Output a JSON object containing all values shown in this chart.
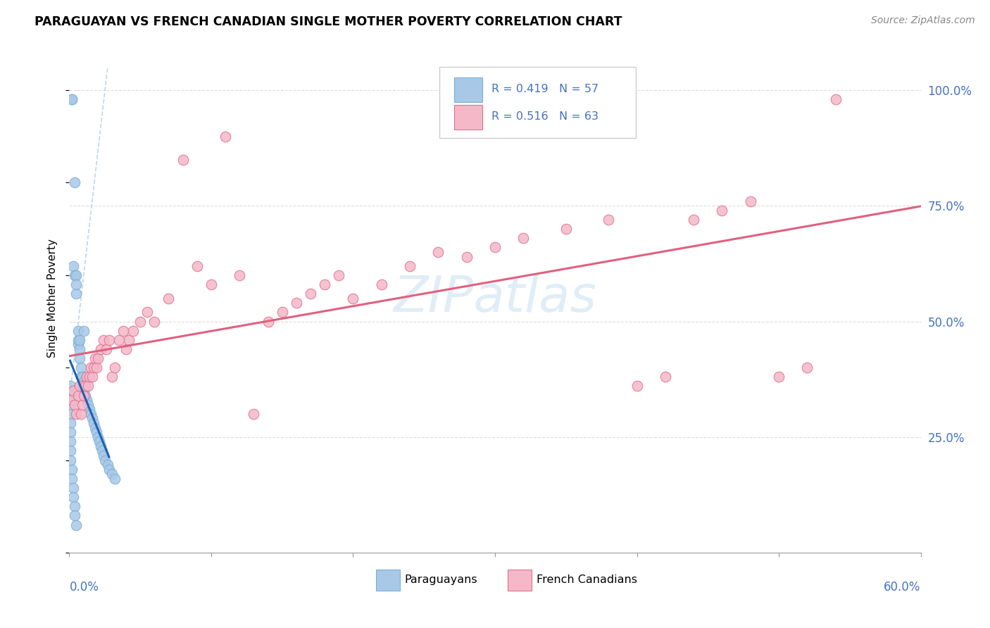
{
  "title": "PARAGUAYAN VS FRENCH CANADIAN SINGLE MOTHER POVERTY CORRELATION CHART",
  "source": "Source: ZipAtlas.com",
  "ylabel": "Single Mother Poverty",
  "paraguayan_color": "#a8c8e8",
  "paraguayan_edge": "#7bafd4",
  "french_color": "#f4b8c8",
  "french_edge": "#e07090",
  "trend_paraguayan_color": "#2060b0",
  "trend_french_color": "#e06080",
  "dashed_color": "#b0cce0",
  "grid_color": "#dddddd",
  "right_tick_color": "#4472c4",
  "watermark_color": "#c8dff0",
  "par_R": "0.419",
  "par_N": "57",
  "fr_R": "0.516",
  "fr_N": "63",
  "par_x": [
    0.002,
    0.002,
    0.003,
    0.004,
    0.004,
    0.005,
    0.005,
    0.005,
    0.006,
    0.006,
    0.006,
    0.007,
    0.007,
    0.007,
    0.008,
    0.008,
    0.009,
    0.009,
    0.01,
    0.01,
    0.011,
    0.011,
    0.012,
    0.013,
    0.014,
    0.015,
    0.016,
    0.017,
    0.018,
    0.019,
    0.02,
    0.021,
    0.022,
    0.023,
    0.024,
    0.025,
    0.027,
    0.028,
    0.03,
    0.032,
    0.001,
    0.001,
    0.001,
    0.001,
    0.001,
    0.001,
    0.001,
    0.001,
    0.001,
    0.002,
    0.002,
    0.003,
    0.003,
    0.004,
    0.004,
    0.005,
    0.01
  ],
  "par_y": [
    0.98,
    0.98,
    0.62,
    0.6,
    0.8,
    0.56,
    0.6,
    0.58,
    0.45,
    0.46,
    0.48,
    0.42,
    0.44,
    0.46,
    0.38,
    0.4,
    0.36,
    0.38,
    0.35,
    0.37,
    0.34,
    0.36,
    0.33,
    0.32,
    0.31,
    0.3,
    0.29,
    0.28,
    0.27,
    0.26,
    0.25,
    0.24,
    0.23,
    0.22,
    0.21,
    0.2,
    0.19,
    0.18,
    0.17,
    0.16,
    0.36,
    0.34,
    0.32,
    0.3,
    0.28,
    0.26,
    0.24,
    0.22,
    0.2,
    0.18,
    0.16,
    0.14,
    0.12,
    0.1,
    0.08,
    0.06,
    0.48
  ],
  "fr_x": [
    0.002,
    0.003,
    0.004,
    0.005,
    0.006,
    0.007,
    0.008,
    0.009,
    0.01,
    0.011,
    0.012,
    0.013,
    0.014,
    0.015,
    0.016,
    0.017,
    0.018,
    0.019,
    0.02,
    0.022,
    0.024,
    0.026,
    0.028,
    0.03,
    0.032,
    0.035,
    0.038,
    0.04,
    0.042,
    0.045,
    0.05,
    0.055,
    0.06,
    0.07,
    0.08,
    0.09,
    0.1,
    0.11,
    0.12,
    0.13,
    0.14,
    0.15,
    0.16,
    0.17,
    0.18,
    0.19,
    0.2,
    0.22,
    0.24,
    0.26,
    0.28,
    0.3,
    0.32,
    0.35,
    0.38,
    0.4,
    0.42,
    0.44,
    0.46,
    0.48,
    0.5,
    0.52,
    0.54
  ],
  "fr_y": [
    0.33,
    0.35,
    0.32,
    0.3,
    0.34,
    0.36,
    0.3,
    0.32,
    0.34,
    0.36,
    0.38,
    0.36,
    0.38,
    0.4,
    0.38,
    0.4,
    0.42,
    0.4,
    0.42,
    0.44,
    0.46,
    0.44,
    0.46,
    0.38,
    0.4,
    0.46,
    0.48,
    0.44,
    0.46,
    0.48,
    0.5,
    0.52,
    0.5,
    0.55,
    0.85,
    0.62,
    0.58,
    0.9,
    0.6,
    0.3,
    0.5,
    0.52,
    0.54,
    0.56,
    0.58,
    0.6,
    0.55,
    0.58,
    0.62,
    0.65,
    0.64,
    0.66,
    0.68,
    0.7,
    0.72,
    0.36,
    0.38,
    0.72,
    0.74,
    0.76,
    0.38,
    0.4,
    0.98
  ],
  "xlim": [
    0.0,
    0.6
  ],
  "ylim": [
    0.0,
    1.1
  ],
  "yticks": [
    0.25,
    0.5,
    0.75,
    1.0
  ],
  "ytick_labels": [
    "25.0%",
    "50.0%",
    "75.0%",
    "100.0%"
  ]
}
